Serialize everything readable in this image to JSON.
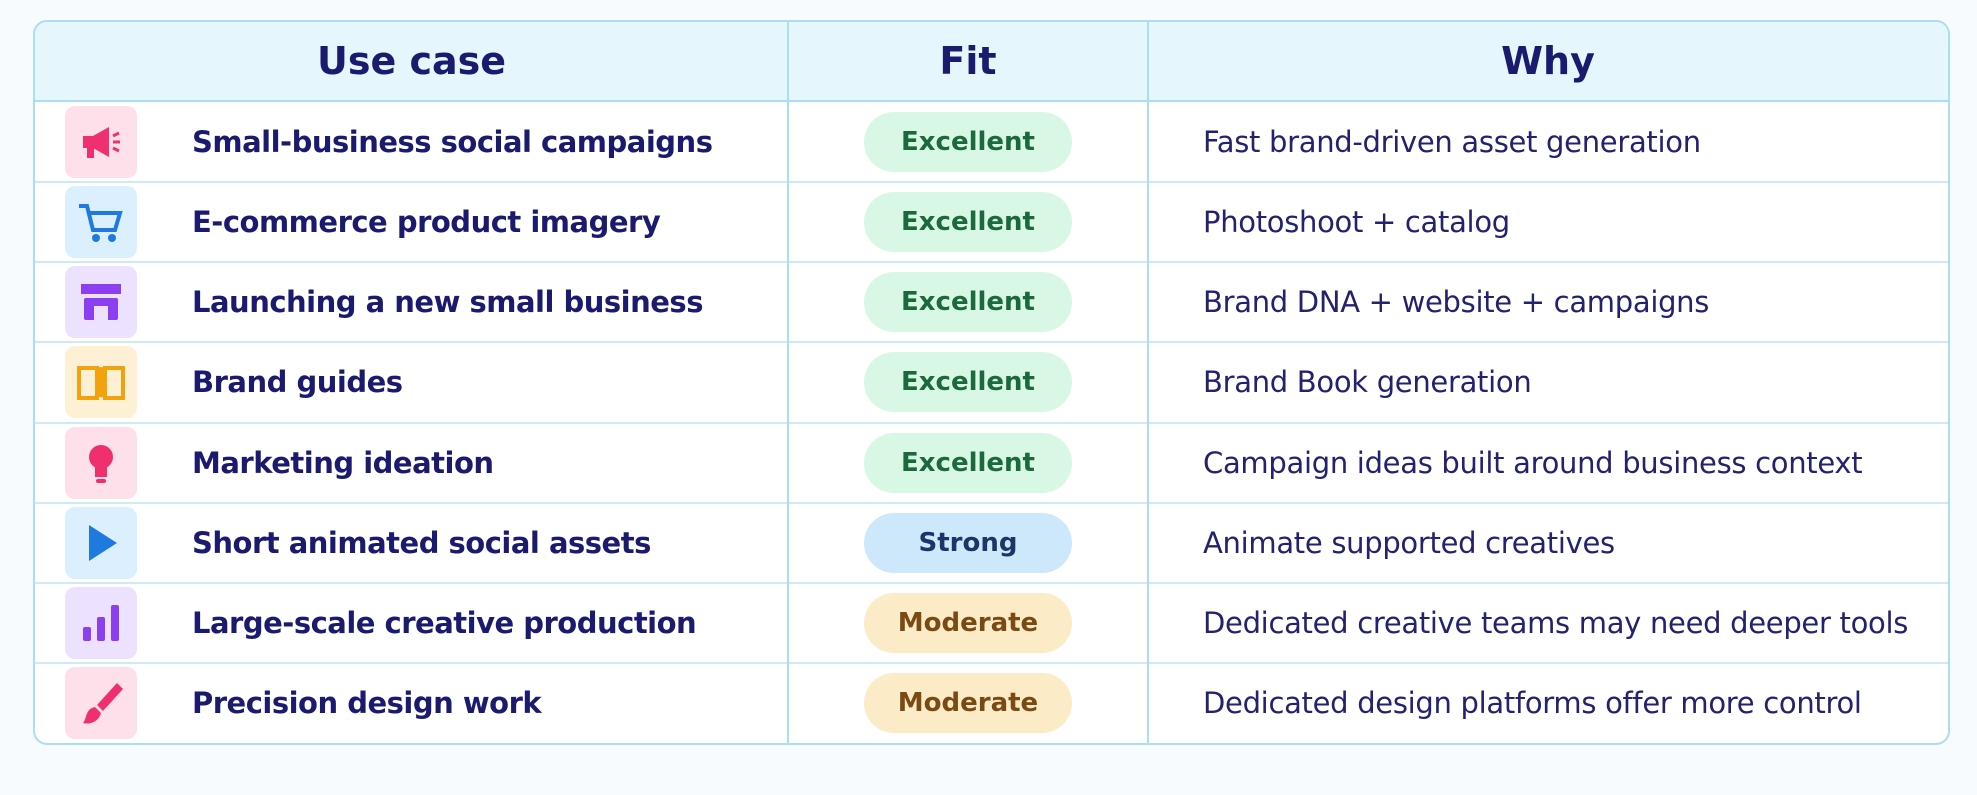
{
  "header": {
    "columns": [
      "Use case",
      "Fit",
      "Why"
    ]
  },
  "table": {
    "rows": [
      {
        "use_case": "Small-business social campaigns",
        "fit": "Excellent",
        "why": "Fast brand-driven asset generation",
        "fit_color": "green"
      },
      {
        "use_case": "E-commerce product imagery",
        "fit": "Excellent",
        "why": "Photoshoot + catalog",
        "fit_color": "green"
      },
      {
        "use_case": "Launching a new small business",
        "fit": "Excellent",
        "why": "Brand DNA + website + campaigns",
        "fit_color": "green"
      },
      {
        "use_case": "Brand guides",
        "fit": "Excellent",
        "why": "Brand Book generation",
        "fit_color": "green"
      },
      {
        "use_case": "Marketing ideation",
        "fit": "Excellent",
        "why": "Campaign ideas built around business context",
        "fit_color": "green"
      },
      {
        "use_case": "Short animated social assets",
        "fit": "Strong",
        "why": "Animate supported creatives",
        "fit_color": "blue"
      },
      {
        "use_case": "Large-scale creative production",
        "fit": "Moderate",
        "why": "Dedicated creative teams may need deeper tools",
        "fit_color": "amber"
      },
      {
        "use_case": "Precision design work",
        "fit": "Moderate",
        "why": "Dedicated design platforms offer more control",
        "fit_color": "amber"
      }
    ]
  }
}
